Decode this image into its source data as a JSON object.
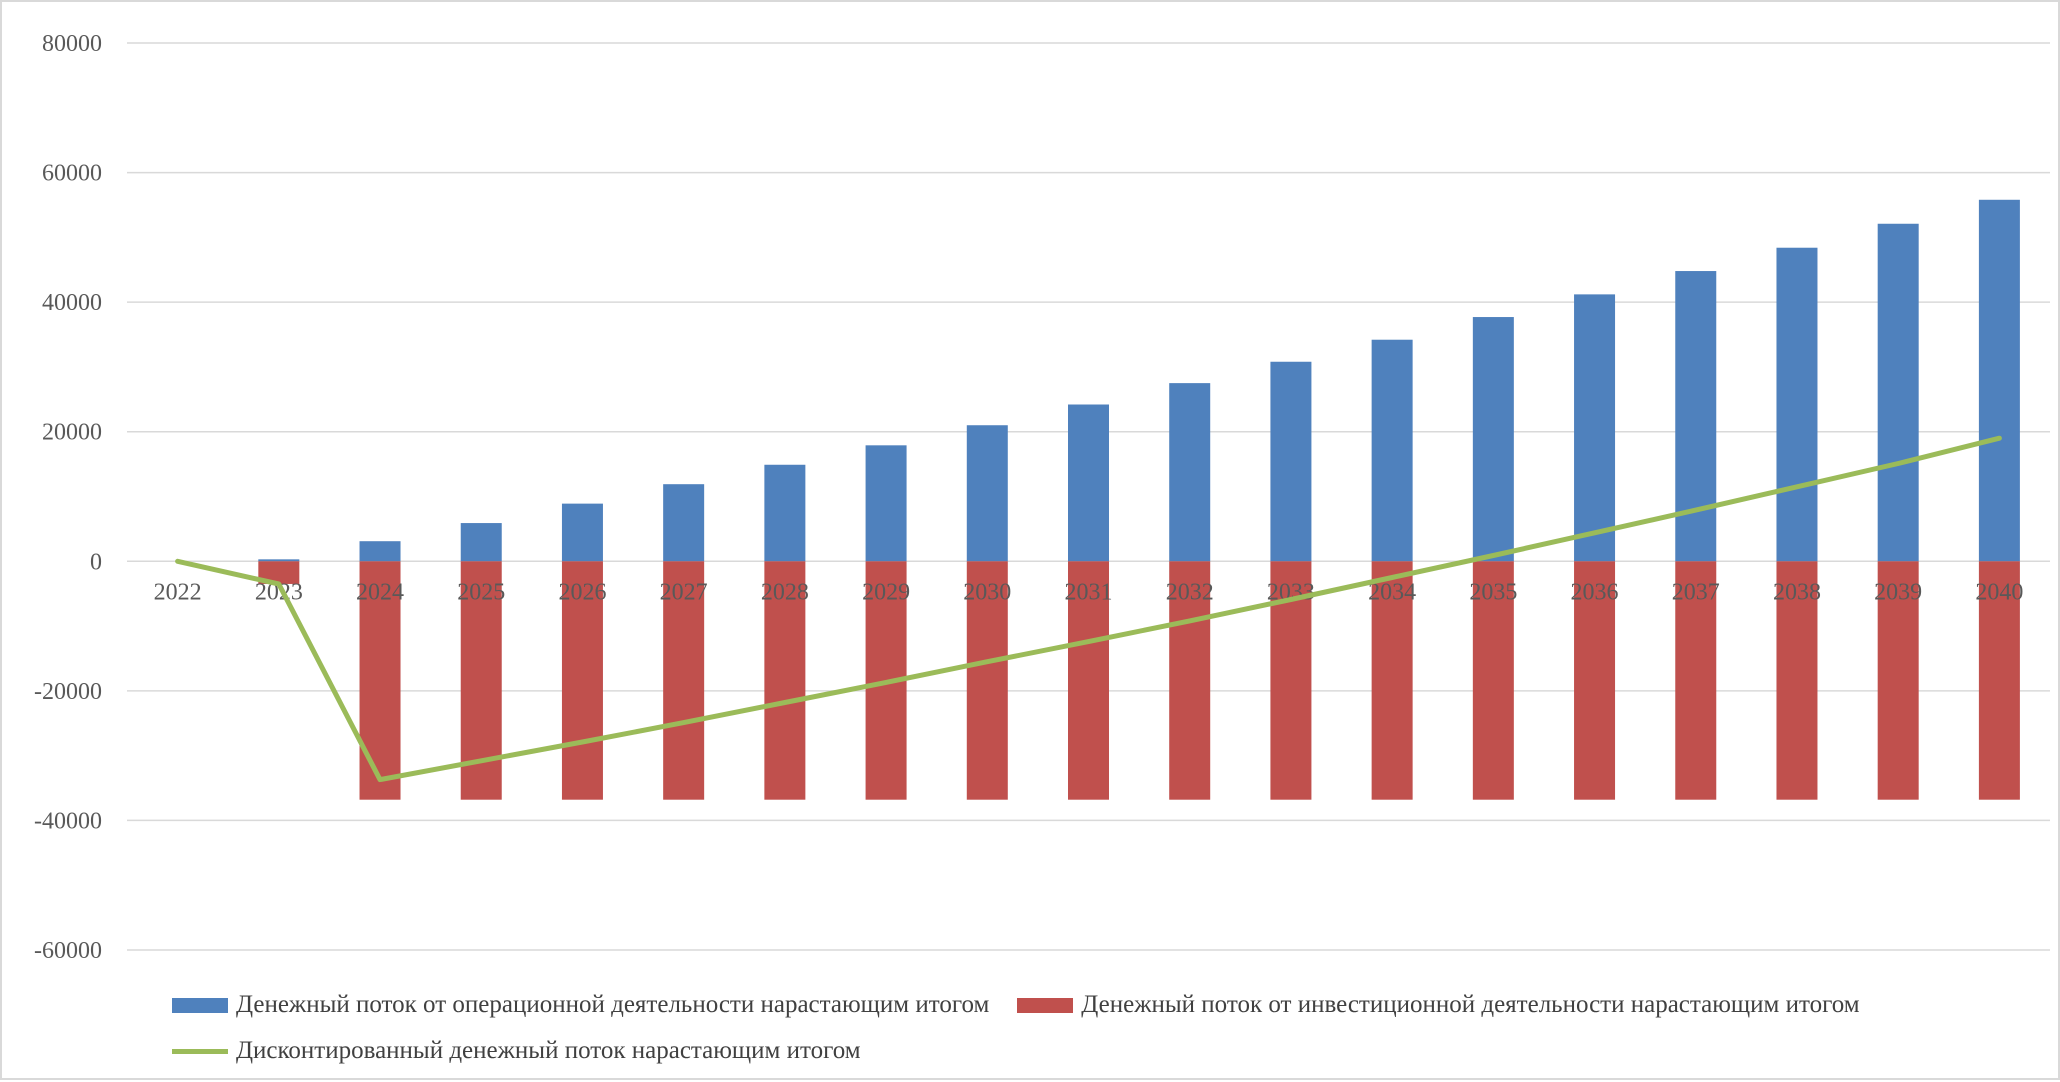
{
  "chart_data": {
    "type": "bar",
    "categories": [
      "2022",
      "2023",
      "2024",
      "2025",
      "2026",
      "2027",
      "2028",
      "2029",
      "2030",
      "2031",
      "2032",
      "2033",
      "2034",
      "2035",
      "2036",
      "2037",
      "2038",
      "2039",
      "2040"
    ],
    "series": [
      {
        "name": "Денежный поток от операционной деятельности нарастающим итогом",
        "type": "bar",
        "color": "#4f81bd",
        "values": [
          0,
          300,
          3100,
          5900,
          8900,
          11900,
          14900,
          17900,
          21000,
          24200,
          27500,
          30800,
          34200,
          37700,
          41200,
          44800,
          48400,
          52100,
          55800
        ]
      },
      {
        "name": "Денежный поток от инвестиционной деятельности нарастающим итогом",
        "type": "bar",
        "color": "#c0504d",
        "values": [
          0,
          -3500,
          -36800,
          -36800,
          -36800,
          -36800,
          -36800,
          -36800,
          -36800,
          -36800,
          -36800,
          -36800,
          -36800,
          -36800,
          -36800,
          -36800,
          -36800,
          -36800,
          -36800
        ]
      },
      {
        "name": "Дисконтированный денежный поток нарастающим итогом",
        "type": "line",
        "color": "#9bbb59",
        "values": [
          0,
          -3500,
          -33700,
          -30800,
          -27900,
          -24900,
          -21800,
          -18700,
          -15500,
          -12400,
          -9200,
          -5900,
          -2500,
          900,
          4400,
          7900,
          11500,
          15100,
          19000
        ]
      }
    ],
    "yticks": [
      "80000",
      "60000",
      "40000",
      "20000",
      "0",
      "-20000",
      "-40000",
      "-60000"
    ],
    "ylim": [
      -60000,
      80000
    ],
    "grid": true,
    "legend_position": "bottom"
  }
}
